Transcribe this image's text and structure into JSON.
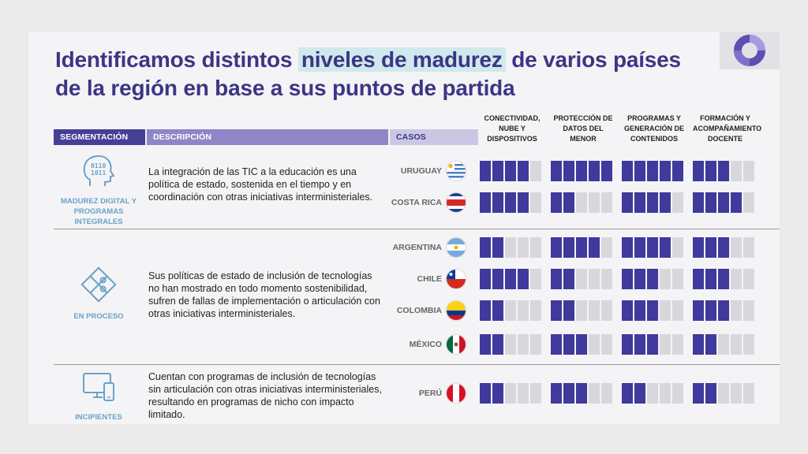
{
  "title": {
    "part1": "Identificamos distintos ",
    "highlight": "niveles de madurez",
    "part2": " de varios países de la región en base a sus puntos de partida"
  },
  "headers": {
    "segmentacion": "SEGMENTACIÓN",
    "descripcion": "DESCRIPCIÓN",
    "casos": "CASOS",
    "dimensions": [
      "CONECTIVIDAD, NUBE Y DISPOSITIVOS",
      "PROTECCIÓN DE DATOS DEL MENOR",
      "PROGRAMAS Y GENERACIÓN DE CONTENIDOS",
      "FORMACIÓN Y ACOMPAÑAMIENTO DOCENTE"
    ]
  },
  "segments": [
    {
      "icon": "head-binary-icon",
      "label": "MADUREZ DIGITAL Y PROGRAMAS INTEGRALES",
      "description": "La integración de las TIC a la educación es una política de estado, sostenida en el tiempo y en coordinación con otras iniciativas interministeriales."
    },
    {
      "icon": "puzzle-icon",
      "label": "EN PROCESO",
      "description": "Sus políticas de estado de inclusión de tecnologías no han mostrado en todo momento sostenibilidad, sufren de fallas de implementación o articulación con otras iniciativas interministeriales."
    },
    {
      "icon": "devices-icon",
      "label": "INCIPIENTES",
      "description": "Cuentan con programas de inclusión de tecnologías sin articulación con otras iniciativas interministeriales, resultando en programas de nicho con impacto limitado."
    }
  ],
  "countries": [
    {
      "name": "URUGUAY",
      "flag": "uruguay-flag-icon",
      "levels": [
        4,
        5,
        5,
        3
      ]
    },
    {
      "name": "COSTA RICA",
      "flag": "costa-rica-flag-icon",
      "levels": [
        4,
        2,
        4,
        4
      ]
    },
    {
      "name": "ARGENTINA",
      "flag": "argentina-flag-icon",
      "levels": [
        2,
        4,
        4,
        3
      ]
    },
    {
      "name": "CHILE",
      "flag": "chile-flag-icon",
      "levels": [
        4,
        2,
        3,
        3
      ]
    },
    {
      "name": "COLOMBIA",
      "flag": "colombia-flag-icon",
      "levels": [
        2,
        2,
        3,
        3
      ]
    },
    {
      "name": "MÉXICO",
      "flag": "mexico-flag-icon",
      "levels": [
        2,
        3,
        3,
        2
      ]
    },
    {
      "name": "PERÚ",
      "flag": "peru-flag-icon",
      "levels": [
        2,
        3,
        2,
        2
      ]
    }
  ],
  "max_level": 5,
  "colors": {
    "title": "#3d3584",
    "bar_on": "#3f3a9b",
    "bar_off": "#d8d8dc",
    "segment_label": "#6aa2c7"
  }
}
